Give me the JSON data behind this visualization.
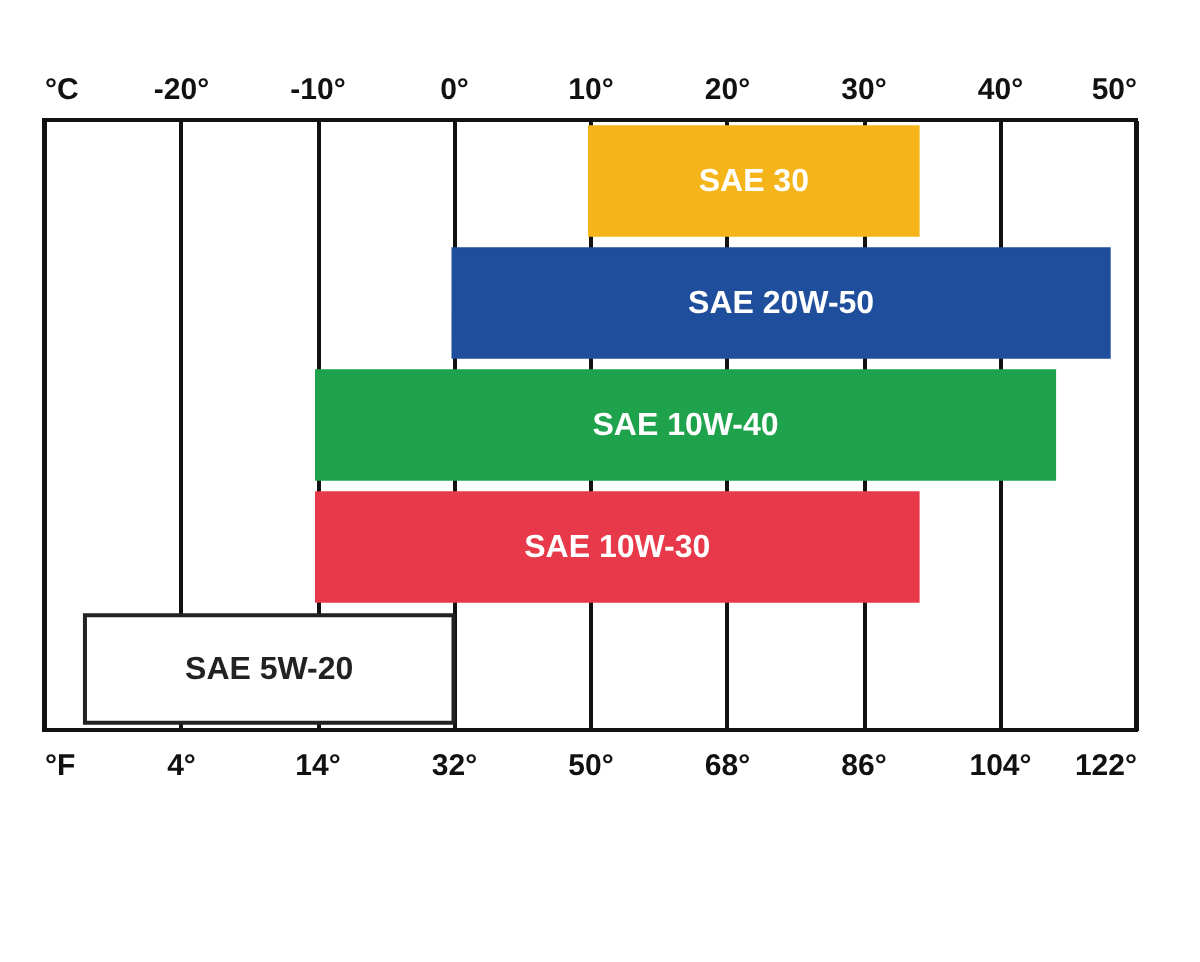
{
  "chart_data": {
    "type": "bar",
    "orientation": "horizontal",
    "categories": [
      "SAE 30",
      "SAE 20W-50",
      "SAE 10W-40",
      "SAE 10W-30",
      "SAE 5W-20"
    ],
    "base": [
      10,
      0,
      -10,
      -10,
      0
    ],
    "values": [
      24,
      48,
      54,
      44,
      -27
    ],
    "colors": [
      "#f5b51a",
      "#1f4e9c",
      "#1ea24b",
      "#e8394a",
      "#ffffff"
    ],
    "xlim": [
      -30,
      50
    ],
    "xticks": [
      {
        "value": -30,
        "label": "°C"
      },
      {
        "value": -20,
        "label": "-20°"
      },
      {
        "value": -10,
        "label": "-10°"
      },
      {
        "value": 0,
        "label": "0°"
      },
      {
        "value": 10,
        "label": "10°"
      },
      {
        "value": 20,
        "label": "20°"
      },
      {
        "value": 30,
        "label": "30°"
      },
      {
        "value": 40,
        "label": "40°"
      },
      {
        "value": 50,
        "label": "50°"
      }
    ],
    "x2lim": [
      -22,
      122
    ],
    "x2ticks": [
      {
        "value": -22,
        "label": "°F"
      },
      {
        "value": -4,
        "label": "4°"
      },
      {
        "value": 14,
        "label": "14°"
      },
      {
        "value": 32,
        "label": "32°"
      },
      {
        "value": 50,
        "label": "50°"
      },
      {
        "value": 68,
        "label": "68°"
      },
      {
        "value": 86,
        "label": "86°"
      },
      {
        "value": 104,
        "label": "104°"
      },
      {
        "value": 122,
        "label": "122°"
      }
    ],
    "grid": "x",
    "tick_labels": "x"
  }
}
